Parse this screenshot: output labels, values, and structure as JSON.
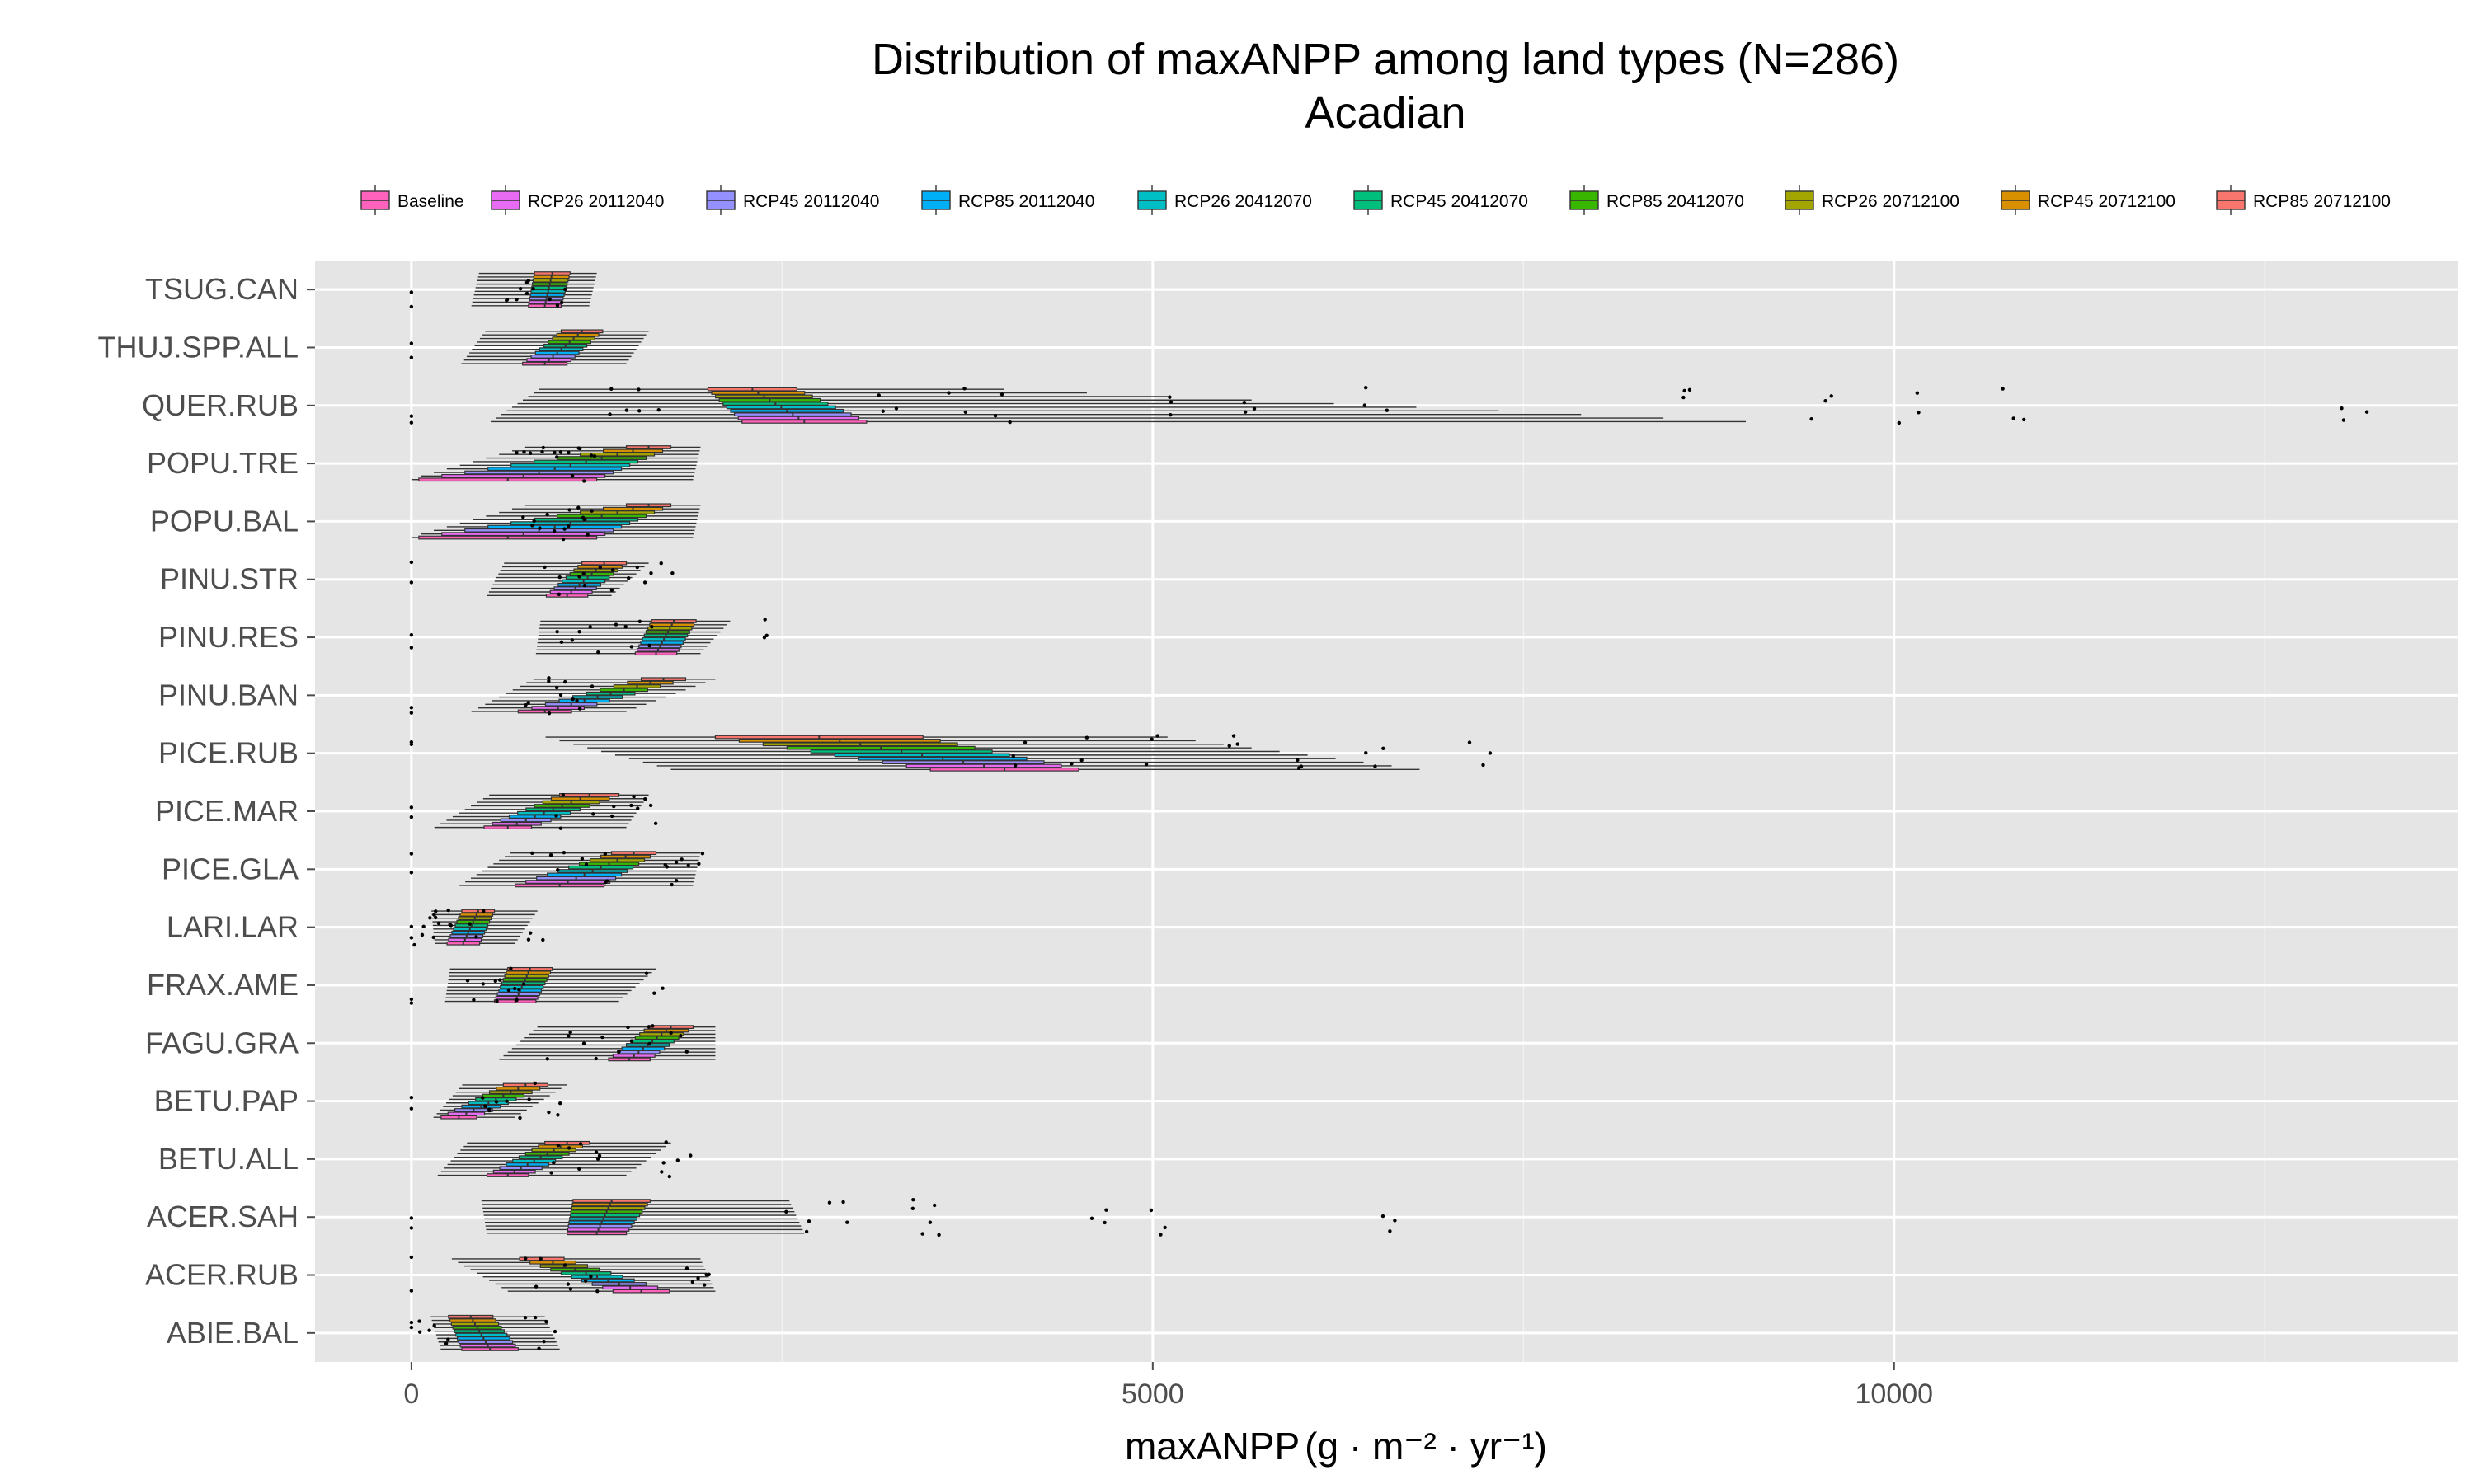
{
  "chart_data": {
    "type": "boxplot",
    "orientation": "horizontal",
    "title": "Distribution of maxANPP among land types (N=286)",
    "subtitle": "Acadian",
    "xlabel": "maxANPP(g · m⁻² · yr⁻¹)",
    "xlabel_main": "maxANPP",
    "xlabel_units": "g · m⁻² · yr⁻¹",
    "xlim": [
      -650,
      13800
    ],
    "xticks": [
      0,
      5000,
      10000
    ],
    "grid": true,
    "legend_position": "top",
    "series_names": [
      "Baseline",
      "RCP26 20112040",
      "RCP45 20112040",
      "RCP85 20112040",
      "RCP26 20412070",
      "RCP45 20412070",
      "RCP85 20412070",
      "RCP26 20712100",
      "RCP45 20712100",
      "RCP85 20712100"
    ],
    "series_colors": [
      "#F8766D",
      "#D89000",
      "#A3A500",
      "#39B600",
      "#00BF7D",
      "#00BFC4",
      "#00B0F6",
      "#9590FF",
      "#E76BF3",
      "#FF62BC"
    ],
    "legend_colors": [
      "#FF62BC",
      "#E76BF3",
      "#9590FF",
      "#00B0F6",
      "#00BFC4",
      "#00BF7D",
      "#39B600",
      "#A3A500",
      "#D89000",
      "#F8766D"
    ],
    "categories": [
      "ABIE.BAL",
      "ACER.RUB",
      "ACER.SAH",
      "BETU.ALL",
      "BETU.PAP",
      "FAGU.GRA",
      "FRAX.AME",
      "LARI.LAR",
      "PICE.GLA",
      "PICE.MAR",
      "PICE.RUB",
      "PINU.BAN",
      "PINU.RES",
      "PINU.STR",
      "POPU.BAL",
      "POPU.TRE",
      "QUER.RUB",
      "THUJ.SPP.ALL",
      "TSUG.CAN"
    ],
    "species": [
      {
        "name": "ABIE.BAL",
        "start": [
          400,
          150,
          600,
          900
        ],
        "end": [
          530,
          190,
          740,
          1000
        ],
        "outliers": [
          0,
          100,
          200,
          800,
          900
        ]
      },
      {
        "name": "ACER.RUB",
        "start": [
          880,
          150,
          1350,
          1950
        ],
        "end": [
          1550,
          190,
          2000,
          2050
        ],
        "outliers": [
          0,
          850,
          1000,
          1200,
          1900,
          2000
        ]
      },
      {
        "name": "ACER.SAH",
        "start": [
          1350,
          260,
          1950,
          2550
        ],
        "end": [
          1250,
          200,
          1650,
          2650
        ],
        "outliers": [
          0,
          2600,
          2900,
          3400,
          3500,
          4600,
          5000,
          6600
        ]
      },
      {
        "name": "BETU.ALL",
        "start": [
          1050,
          150,
          1500,
          1750
        ],
        "end": [
          650,
          140,
          1050,
          1450
        ],
        "outliers": [
          900,
          1100,
          1300,
          1700,
          1800
        ]
      },
      {
        "name": "BETU.PAP",
        "start": [
          770,
          150,
          950,
          1050
        ],
        "end": [
          320,
          120,
          380,
          700
        ],
        "outliers": [
          0,
          500,
          600,
          800,
          1000
        ]
      },
      {
        "name": "FAGU.GRA",
        "start": [
          1750,
          150,
          2000,
          2050
        ],
        "end": [
          1470,
          140,
          1950,
          2050
        ],
        "outliers": [
          1000,
          1200,
          1400,
          1600,
          1800
        ]
      },
      {
        "name": "FRAX.AME",
        "start": [
          800,
          150,
          1200,
          1650
        ],
        "end": [
          700,
          140,
          1050,
          1400
        ],
        "outliers": [
          0,
          450,
          550,
          650,
          750,
          1650
        ]
      },
      {
        "name": "LARI.LAR",
        "start": [
          450,
          110,
          700,
          850
        ],
        "end": [
          350,
          110,
          430,
          700
        ],
        "outliers": [
          0,
          50,
          100,
          150,
          250,
          450,
          850
        ]
      },
      {
        "name": "PICE.GLA",
        "start": [
          1500,
          150,
          1850,
          1950
        ],
        "end": [
          1000,
          300,
          1500,
          1900
        ],
        "outliers": [
          0,
          900,
          1100,
          1300,
          1700,
          1800,
          1900
        ]
      },
      {
        "name": "PICE.MAR",
        "start": [
          1200,
          200,
          1500,
          1600
        ],
        "end": [
          650,
          160,
          1100,
          1450
        ],
        "outliers": [
          0,
          1000,
          1300,
          1500,
          1600
        ]
      },
      {
        "name": "PICE.RUB",
        "start": [
          2750,
          700,
          4100,
          5100
        ],
        "end": [
          4000,
          500,
          5000,
          6800
        ],
        "outliers": [
          0,
          4100,
          4500,
          5000,
          5500,
          6000,
          6500,
          7200
        ]
      },
      {
        "name": "PINU.BAN",
        "start": [
          1700,
          150,
          1950,
          2050
        ],
        "end": [
          900,
          180,
          1100,
          1450
        ],
        "outliers": [
          0,
          850,
          950,
          1050,
          1200
        ]
      },
      {
        "name": "PINU.RES",
        "start": [
          1770,
          150,
          2000,
          2150
        ],
        "end": [
          1650,
          140,
          1800,
          1950
        ],
        "outliers": [
          0,
          1000,
          1200,
          1400,
          1600,
          2400
        ]
      },
      {
        "name": "PINU.STR",
        "start": [
          1300,
          150,
          1500,
          1600
        ],
        "end": [
          1050,
          140,
          1200,
          1350
        ],
        "outliers": [
          0,
          950,
          1100,
          1300,
          1500,
          1700
        ]
      },
      {
        "name": "POPU.BAL",
        "start": [
          1600,
          150,
          1850,
          1950
        ],
        "end": [
          650,
          600,
          1500,
          1900
        ],
        "outliers": [
          800,
          900,
          1000,
          1100,
          1200
        ]
      },
      {
        "name": "POPU.TRE",
        "start": [
          1600,
          150,
          1850,
          1950
        ],
        "end": [
          650,
          600,
          1500,
          1900
        ],
        "outliers": [
          800,
          900,
          1000,
          1100,
          1200
        ]
      },
      {
        "name": "QUER.RUB",
        "start": [
          2300,
          300,
          3200,
          4000
        ],
        "end": [
          2650,
          420,
          4700,
          9000
        ],
        "outliers": [
          0,
          1400,
          1600,
          3200,
          3700,
          4000,
          5200,
          5600,
          6500,
          8600,
          9500,
          10100,
          10800,
          13100
        ]
      },
      {
        "name": "THUJ.SPP.ALL",
        "start": [
          1150,
          140,
          1450,
          1600
        ],
        "end": [
          900,
          150,
          1250,
          1450
        ],
        "outliers": [
          0
        ]
      },
      {
        "name": "TSUG.CAN",
        "start": [
          950,
          120,
          1100,
          1250
        ],
        "end": [
          900,
          110,
          1100,
          1200
        ],
        "outliers": [
          0,
          650,
          750,
          850,
          950
        ]
      }
    ]
  }
}
